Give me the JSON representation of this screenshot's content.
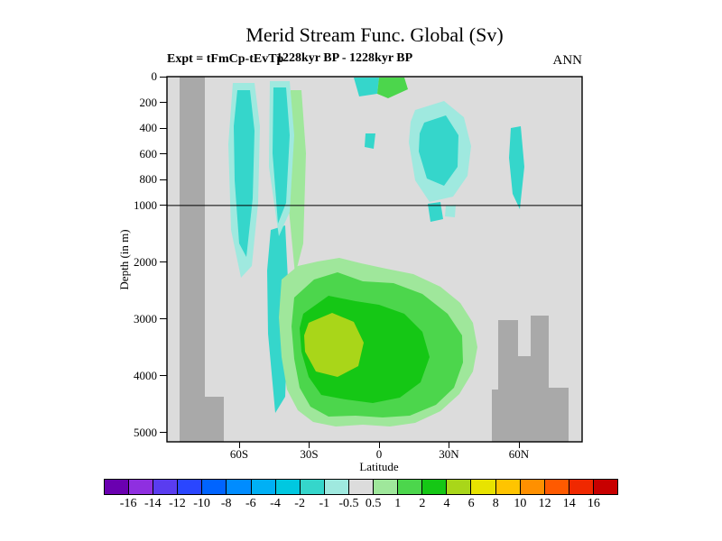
{
  "chart_data": {
    "type": "heatmap",
    "subtype": "filled-contour-section",
    "title": "Merid Stream Func. Global (Sv)",
    "experiment": "Expt = tFmCp-tEvTp",
    "period": "1228kyr BP - 1228kyr BP",
    "season": "ANN",
    "units": "Sv",
    "xlabel": "Latitude",
    "ylabel": "Depth (in m)",
    "x_ticks": [
      "60S",
      "30S",
      "0",
      "30N",
      "60N"
    ],
    "y_ticks": [
      "0",
      "200",
      "400",
      "600",
      "800",
      "1000",
      "2000",
      "3000",
      "4000",
      "5000"
    ],
    "y_axis_split_m": 1000,
    "x_range": [
      "90S",
      "90N"
    ],
    "y_range_m": [
      0,
      5000
    ],
    "background_color": "#dcdcdc",
    "land_color": "#a9a9a9",
    "colorbar": {
      "levels": [
        -16,
        -14,
        -12,
        -10,
        -8,
        -6,
        -4,
        -2,
        -1,
        -0.5,
        0.5,
        1,
        2,
        4,
        6,
        8,
        10,
        12,
        14,
        16
      ],
      "labels": [
        "-16",
        "-14",
        "-12",
        "-10",
        "-8",
        "-6",
        "-4",
        "-2",
        "-1",
        "-0.5",
        "0.5",
        "1",
        "2",
        "4",
        "6",
        "8",
        "10",
        "12",
        "14",
        "16"
      ],
      "colors": [
        "#6a00b0",
        "#8f2fe0",
        "#5a3cf0",
        "#2a46ff",
        "#0064ff",
        "#008cff",
        "#00b0f5",
        "#00c8e0",
        "#35d6cb",
        "#9fe9df",
        "#dcdcdc",
        "#9fe79b",
        "#4cd64c",
        "#15c715",
        "#a9d619",
        "#e8e300",
        "#ffc400",
        "#ff9000",
        "#ff5a00",
        "#f02800",
        "#c80000"
      ]
    },
    "features": [
      {
        "region": "Southern Ocean 62S-52S",
        "depth_m": "0-2500",
        "value_sv": "-2 to -0.5"
      },
      {
        "region": "48S column",
        "depth_m": "0-4800",
        "value_sv": "-2 to -0.5"
      },
      {
        "region": "equator surface 5S-0",
        "depth_m": "0-200",
        "value_sv": "-2 to -1"
      },
      {
        "region": "surface 0-10N",
        "depth_m": "0-250",
        "value_sv": "1 to 2"
      },
      {
        "region": "subtropical North 25N-35N",
        "depth_m": "300-1100",
        "value_sv": "-2 to -0.5"
      },
      {
        "region": "55N column",
        "depth_m": "400-1000",
        "value_sv": "-2 to -1"
      },
      {
        "region": "deep global cell 50S-42N",
        "depth_m": "2000-5000",
        "value_sv": "0.5 to 6",
        "core": "4-6 Sv at 35S-20S, 3000-4200 m"
      }
    ],
    "notes": "Gray shading = bathymetry/land mask at section edges and ocean floor; horizontal line marks 1000 m axis split"
  }
}
